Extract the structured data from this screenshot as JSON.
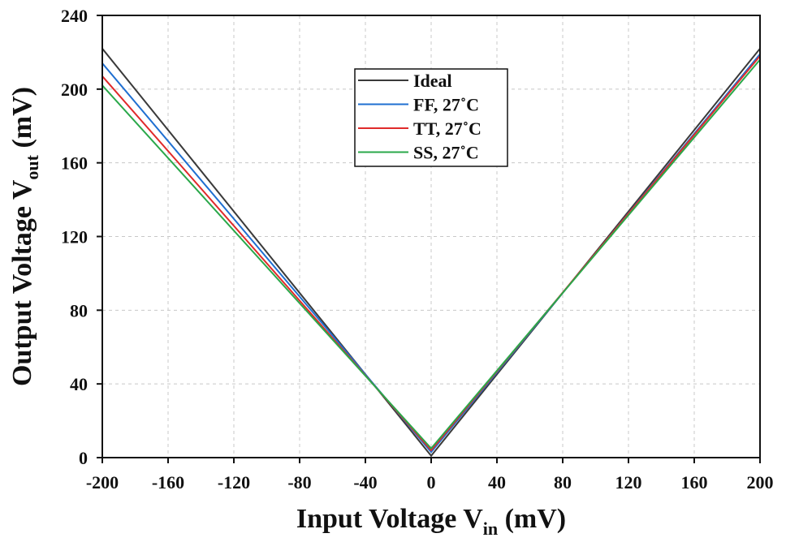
{
  "chart_data": {
    "type": "line",
    "xlabel": {
      "main": "Input Voltage V",
      "sub": "in",
      "unit": " (mV)"
    },
    "ylabel": {
      "main": "Output Voltage V",
      "sub": "out",
      "unit": " (mV)"
    },
    "xlim": [
      -200,
      200
    ],
    "ylim": [
      0,
      240
    ],
    "xticks": [
      -200,
      -160,
      -120,
      -80,
      -40,
      0,
      40,
      80,
      120,
      160,
      200
    ],
    "yticks": [
      0,
      40,
      80,
      120,
      160,
      200,
      240
    ],
    "grid": true,
    "legend_position": "top-center",
    "series": [
      {
        "name": "Ideal",
        "color": "#3a3a3a",
        "x": [
          -200,
          0,
          200
        ],
        "y": [
          222,
          1,
          222
        ]
      },
      {
        "name": "FF, 27˚C",
        "color": "#1f6fd1",
        "x": [
          -200,
          0,
          200
        ],
        "y": [
          214,
          3,
          219
        ]
      },
      {
        "name": "TT, 27˚C",
        "color": "#e02a2a",
        "x": [
          -200,
          0,
          200
        ],
        "y": [
          207,
          4,
          218
        ]
      },
      {
        "name": "SS, 27˚C",
        "color": "#2aa84a",
        "x": [
          -200,
          0,
          200
        ],
        "y": [
          202,
          5,
          216
        ]
      }
    ]
  }
}
